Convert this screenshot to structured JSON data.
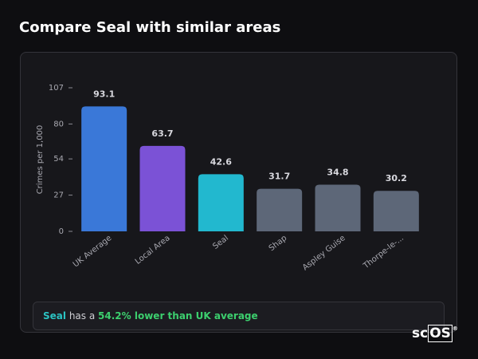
{
  "title": "Compare Seal with similar areas",
  "chart_data": {
    "type": "bar",
    "y_label": "Crimes per 1,000",
    "categories": [
      "UK Average",
      "Local Area",
      "Seal",
      "Shap",
      "Aspley Guise",
      "Thorpe-le-..."
    ],
    "values": [
      93.1,
      63.7,
      42.6,
      31.7,
      34.8,
      30.2
    ],
    "colors": [
      "#3a78d8",
      "#7b52d6",
      "#22b8cf",
      "#5d6778",
      "#5d6778",
      "#5d6778"
    ],
    "ylim": [
      0,
      107
    ],
    "yticks": [
      0,
      27,
      54,
      80,
      107
    ]
  },
  "summary": {
    "area": "Seal",
    "text": "has a",
    "comparison": "54.2% lower than UK average"
  },
  "logo": {
    "text": "sc",
    "boxed": "OS",
    "mark": "®"
  }
}
